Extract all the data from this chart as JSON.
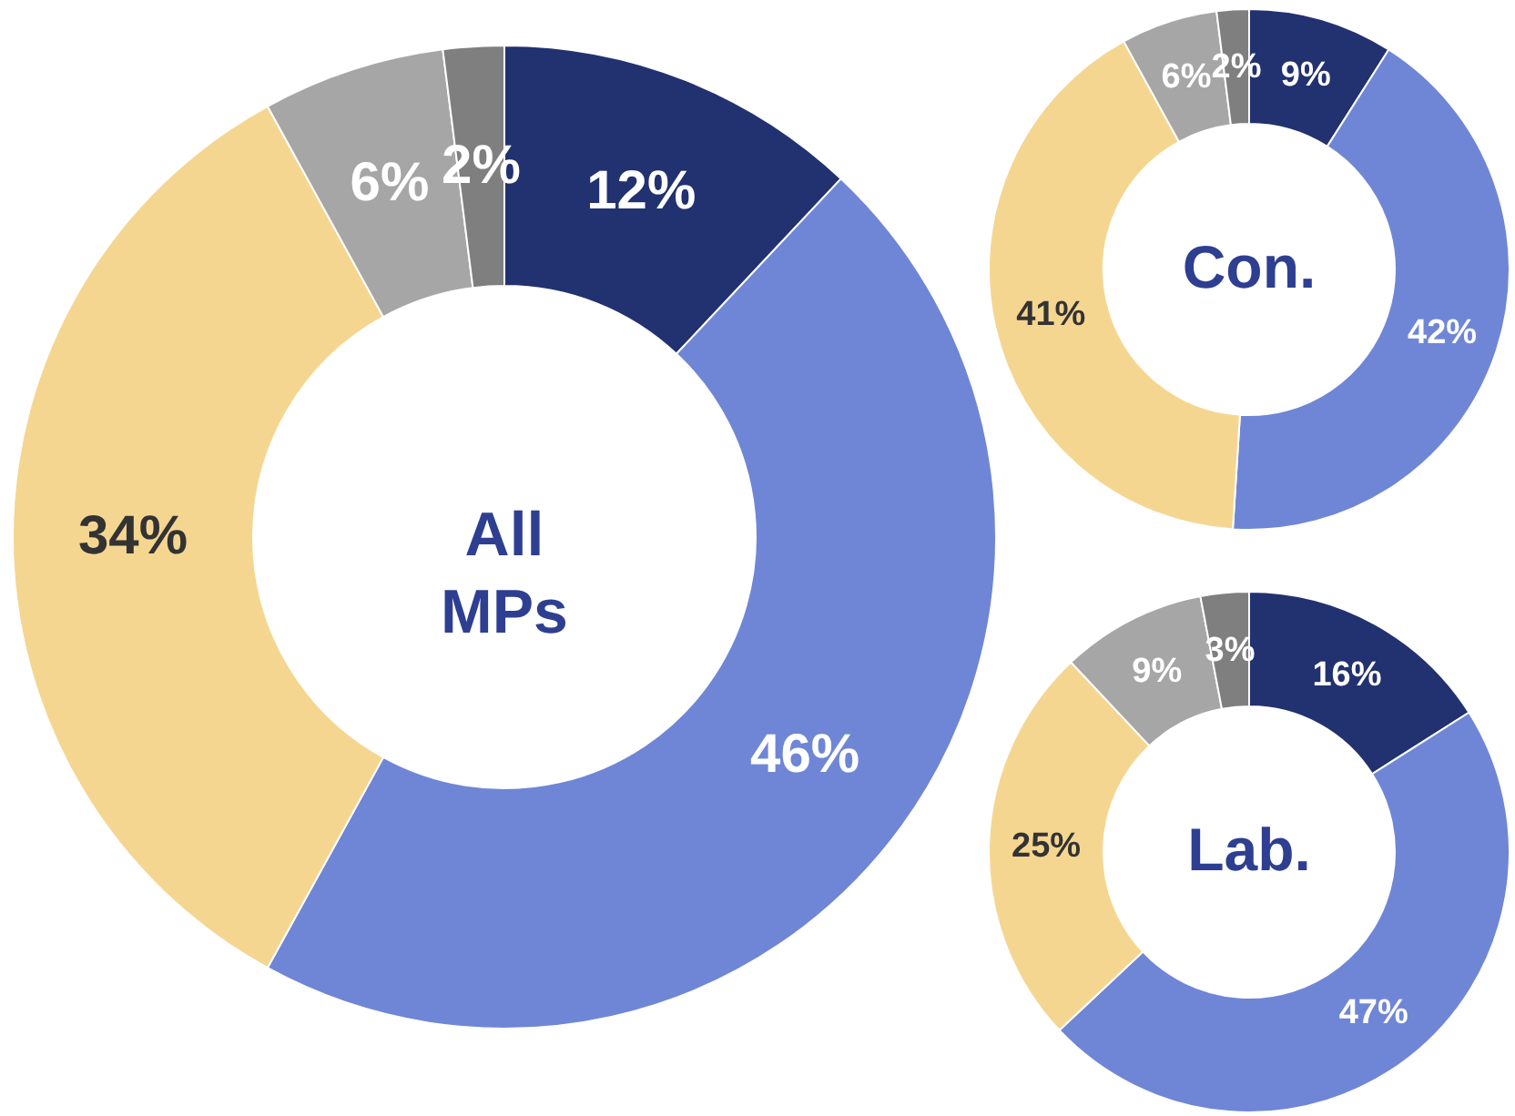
{
  "chart_data": [
    {
      "type": "donut",
      "title": "All MPs",
      "categories": [
        null,
        null,
        null,
        null,
        null
      ],
      "values": [
        12,
        46,
        34,
        6,
        2
      ],
      "colors": [
        "#22316f",
        "#6f86d6",
        "#f5d691",
        "#a6a6a6",
        "#7f7f7f"
      ],
      "value_labels": [
        "12%",
        "46%",
        "34%",
        "6%",
        "2%"
      ]
    },
    {
      "type": "donut",
      "title": "Con.",
      "categories": [
        null,
        null,
        null,
        null,
        null
      ],
      "values": [
        9,
        42,
        41,
        6,
        2
      ],
      "colors": [
        "#22316f",
        "#6f86d6",
        "#f5d691",
        "#a6a6a6",
        "#7f7f7f"
      ],
      "value_labels": [
        "9%",
        "42%",
        "41%",
        "6%",
        "2%"
      ]
    },
    {
      "type": "donut",
      "title": "Lab.",
      "categories": [
        null,
        null,
        null,
        null,
        null
      ],
      "values": [
        16,
        47,
        25,
        9,
        3
      ],
      "colors": [
        "#22316f",
        "#6f86d6",
        "#f5d691",
        "#a6a6a6",
        "#7f7f7f"
      ],
      "value_labels": [
        "16%",
        "47%",
        "25%",
        "9%",
        "3%"
      ]
    }
  ]
}
